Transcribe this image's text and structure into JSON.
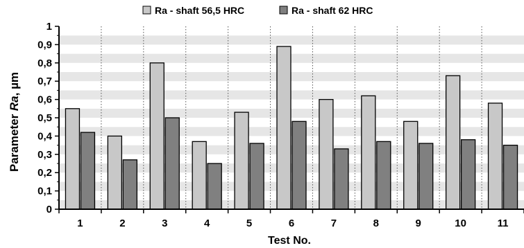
{
  "chart_data": {
    "type": "bar",
    "categories": [
      "1",
      "2",
      "3",
      "4",
      "5",
      "6",
      "7",
      "8",
      "9",
      "10",
      "11"
    ],
    "series": [
      {
        "name": "Ra - shaft 56,5 HRC",
        "color": "#c8c8c8",
        "values": [
          0.55,
          0.4,
          0.8,
          0.37,
          0.53,
          0.89,
          0.6,
          0.62,
          0.48,
          0.73,
          0.58
        ]
      },
      {
        "name": "Ra - shaft 62 HRC",
        "color": "#808080",
        "values": [
          0.42,
          0.27,
          0.5,
          0.25,
          0.36,
          0.48,
          0.33,
          0.37,
          0.36,
          0.38,
          0.35
        ]
      }
    ],
    "xlabel": "Test No.",
    "ylabel_prefix": "Parameter ",
    "ylabel_symbol": "Ra",
    "ylabel_suffix": ", µm",
    "ylim": [
      0,
      1
    ],
    "yticks": [
      "0",
      "0,1",
      "0,2",
      "0,3",
      "0,4",
      "0,5",
      "0,6",
      "0,7",
      "0,8",
      "0,9",
      "1"
    ],
    "grid": "horizontal banded, dotted vertical separators",
    "legend_position": "top-center"
  }
}
